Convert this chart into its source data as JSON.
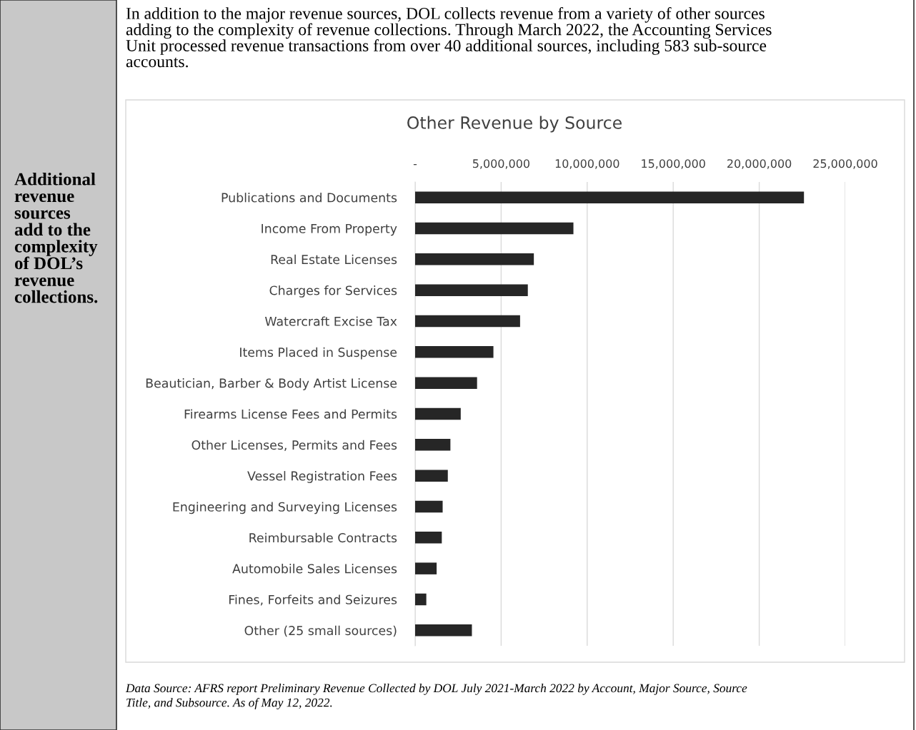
{
  "chart_data": {
    "type": "bar",
    "orientation": "horizontal",
    "title": "Other Revenue by Source",
    "subtitle": "In addition to the major revenue sources, DOL collects revenue from a variety of other sources\nadding to the complexity of revenue collections. Through March 2022, the Accounting Services\nUnit processed revenue transactions from over 40 additional sources, including 583 sub-source\naccounts.",
    "annotations": [
      "Additional\nrevenue\nsources\nadd to the\ncomplexity\nof DOL’s\nrevenue\ncollections.",
      "Data Source: AFRS report Preliminary Revenue Collected by DOL July 2021-March 2022 by Account, Major Source, Source\nTitle, and Subsource. As of May 12, 2022."
    ],
    "categories": [
      "Publications and Documents",
      "Income From Property",
      "Real Estate Licenses",
      "Charges for Services",
      "Watercraft Excise Tax",
      "Items Placed in Suspense",
      "Beautician, Barber & Body Artist License",
      "Firearms License Fees and Permits",
      "Other Licenses, Permits and Fees",
      "Vessel Registration Fees",
      "Engineering and Surveying Licenses",
      "Reimbursable Contracts",
      "Automobile Sales Licenses",
      "Fines, Forfeits and Seizures",
      "Other (25 small sources)"
    ],
    "values": [
      22600000,
      9200000,
      6900000,
      6550000,
      6100000,
      4550000,
      3600000,
      2650000,
      2050000,
      1900000,
      1600000,
      1550000,
      1250000,
      650000,
      3300000
    ],
    "color": "#262626",
    "xlim": [
      0,
      25000000
    ],
    "xticks": [
      {
        "value": 0,
        "label": "-"
      },
      {
        "value": 5000000,
        "label": "5,000,000"
      },
      {
        "value": 10000000,
        "label": "10,000,000"
      },
      {
        "value": 15000000,
        "label": "15,000,000"
      },
      {
        "value": 20000000,
        "label": "20,000,000"
      },
      {
        "value": 25000000,
        "label": "25,000,000"
      }
    ],
    "grid": "x",
    "legend": false
  }
}
